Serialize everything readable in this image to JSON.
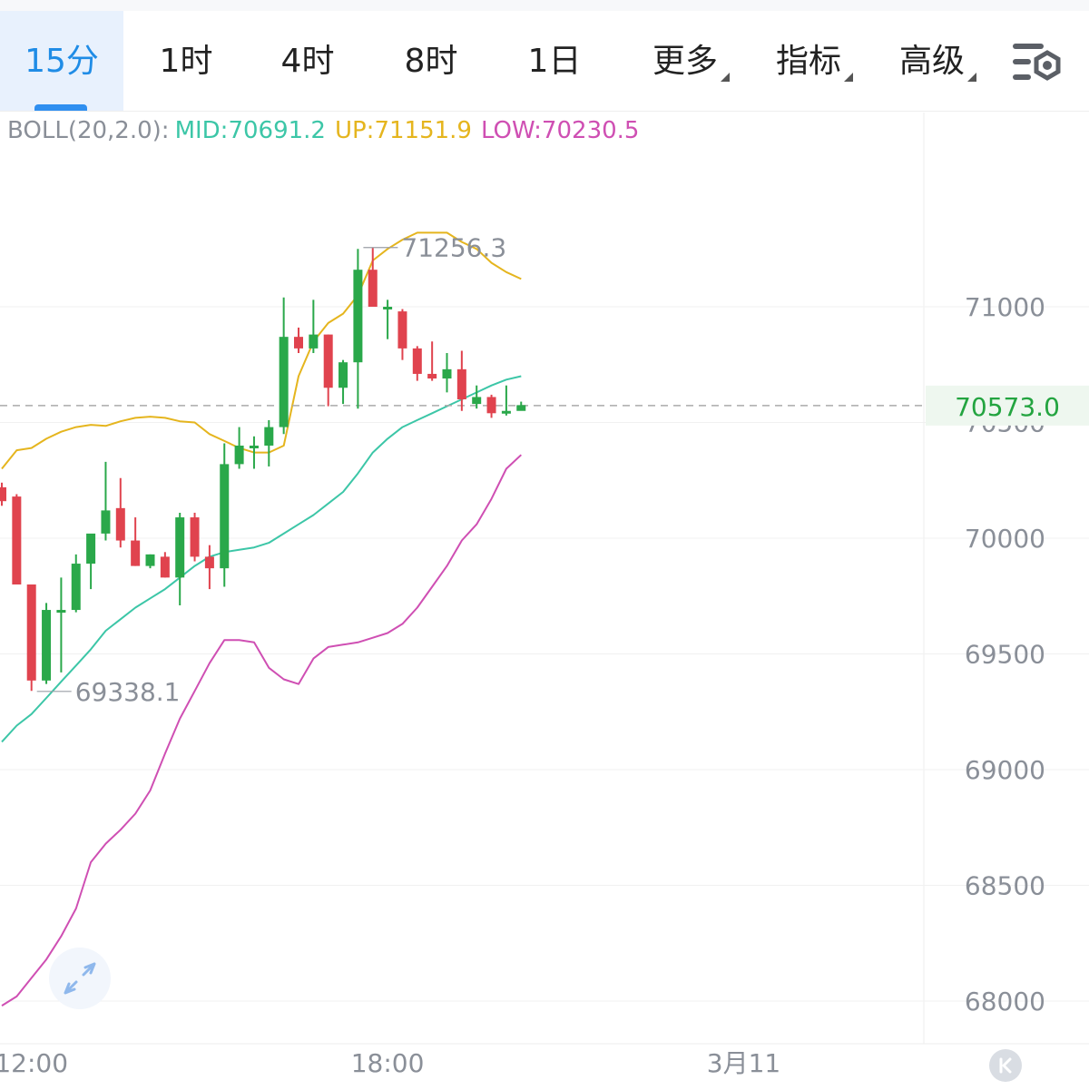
{
  "toolbar": {
    "tabs": [
      {
        "label": "15分",
        "active": true
      },
      {
        "label": "1时"
      },
      {
        "label": "4时"
      },
      {
        "label": "8时"
      },
      {
        "label": "1日"
      },
      {
        "label": "更多",
        "dropdown": true
      },
      {
        "label": "指标",
        "dropdown": true
      },
      {
        "label": "高级",
        "dropdown": true
      }
    ],
    "settings_icon": "chart-settings-icon"
  },
  "indicator": {
    "name": "BOLL(20,2.0):",
    "mid": "MID:70691.2",
    "up": "UP:71151.9",
    "low": "LOW:70230.5"
  },
  "colors": {
    "up_candle": "#2aa84a",
    "down_candle": "#e0434e",
    "boll_mid": "#3cc6a7",
    "boll_up": "#e5b51e",
    "boll_low": "#cf4fb3",
    "price_label": "#23a440",
    "accent": "#1f8ce6"
  },
  "chart_data": {
    "type": "candlestick",
    "interval": "15分",
    "y_axis": {
      "ticks": [
        71000,
        70500,
        70000,
        69500,
        69000,
        68500,
        68000
      ],
      "range": [
        67980,
        71820
      ]
    },
    "x_axis": {
      "labels": [
        {
          "text": "12:00",
          "index": 2
        },
        {
          "text": "18:00",
          "index": 26
        },
        {
          "text": "3月11",
          "index": 50
        }
      ]
    },
    "current_price": "70573.0",
    "high_annotation": {
      "text": "71256.3",
      "index": 24
    },
    "low_annotation": {
      "text": "69338.1",
      "index": 2
    },
    "candles": [
      {
        "o": 70220,
        "h": 70240,
        "l": 70140,
        "c": 70160
      },
      {
        "o": 70180,
        "h": 70190,
        "l": 69800,
        "c": 69800
      },
      {
        "o": 69800,
        "h": 69800,
        "l": 69340,
        "c": 69385
      },
      {
        "o": 69385,
        "h": 69720,
        "l": 69370,
        "c": 69690
      },
      {
        "o": 69680,
        "h": 69830,
        "l": 69420,
        "c": 69690
      },
      {
        "o": 69690,
        "h": 69930,
        "l": 69680,
        "c": 69890
      },
      {
        "o": 69890,
        "h": 70010,
        "l": 69780,
        "c": 70020
      },
      {
        "o": 70020,
        "h": 70330,
        "l": 69990,
        "c": 70120
      },
      {
        "o": 70130,
        "h": 70260,
        "l": 69960,
        "c": 69990
      },
      {
        "o": 69990,
        "h": 70090,
        "l": 69880,
        "c": 69880
      },
      {
        "o": 69880,
        "h": 69930,
        "l": 69870,
        "c": 69930
      },
      {
        "o": 69920,
        "h": 69940,
        "l": 69830,
        "c": 69830
      },
      {
        "o": 69830,
        "h": 70110,
        "l": 69710,
        "c": 70090
      },
      {
        "o": 70090,
        "h": 70110,
        "l": 69900,
        "c": 69920
      },
      {
        "o": 69920,
        "h": 69970,
        "l": 69780,
        "c": 69870
      },
      {
        "o": 69870,
        "h": 70410,
        "l": 69790,
        "c": 70320
      },
      {
        "o": 70320,
        "h": 70480,
        "l": 70300,
        "c": 70400
      },
      {
        "o": 70400,
        "h": 70440,
        "l": 70300,
        "c": 70400
      },
      {
        "o": 70400,
        "h": 70510,
        "l": 70310,
        "c": 70480
      },
      {
        "o": 70480,
        "h": 71040,
        "l": 70450,
        "c": 70870
      },
      {
        "o": 70870,
        "h": 70910,
        "l": 70800,
        "c": 70820
      },
      {
        "o": 70820,
        "h": 71030,
        "l": 70800,
        "c": 70880
      },
      {
        "o": 70880,
        "h": 70880,
        "l": 70570,
        "c": 70650
      },
      {
        "o": 70650,
        "h": 70770,
        "l": 70580,
        "c": 70760
      },
      {
        "o": 70760,
        "h": 71250,
        "l": 70560,
        "c": 71160
      },
      {
        "o": 71160,
        "h": 71256,
        "l": 71000,
        "c": 71000
      },
      {
        "o": 71000,
        "h": 71030,
        "l": 70860,
        "c": 71000
      },
      {
        "o": 70980,
        "h": 70990,
        "l": 70770,
        "c": 70820
      },
      {
        "o": 70820,
        "h": 70830,
        "l": 70680,
        "c": 70710
      },
      {
        "o": 70710,
        "h": 70850,
        "l": 70680,
        "c": 70690
      },
      {
        "o": 70690,
        "h": 70800,
        "l": 70630,
        "c": 70730
      },
      {
        "o": 70730,
        "h": 70810,
        "l": 70550,
        "c": 70600
      },
      {
        "o": 70580,
        "h": 70660,
        "l": 70560,
        "c": 70610
      },
      {
        "o": 70610,
        "h": 70620,
        "l": 70520,
        "c": 70540
      },
      {
        "o": 70550,
        "h": 70660,
        "l": 70530,
        "c": 70550
      },
      {
        "o": 70550,
        "h": 70590,
        "l": 70560,
        "c": 70575
      }
    ],
    "boll_up": [
      70300,
      70380,
      70390,
      70430,
      70460,
      70480,
      70490,
      70485,
      70505,
      70520,
      70525,
      70520,
      70505,
      70500,
      70450,
      70420,
      70390,
      70370,
      70370,
      70400,
      70700,
      70850,
      70930,
      70970,
      71050,
      71200,
      71250,
      71290,
      71320,
      71320,
      71320,
      71280,
      71250,
      71190,
      71150,
      71120
    ],
    "boll_mid": [
      69120,
      69190,
      69240,
      69310,
      69380,
      69450,
      69520,
      69600,
      69650,
      69700,
      69740,
      69780,
      69830,
      69880,
      69920,
      69940,
      69950,
      69960,
      69980,
      70020,
      70060,
      70100,
      70150,
      70200,
      70280,
      70370,
      70430,
      70480,
      70510,
      70540,
      70570,
      70600,
      70630,
      70660,
      70685,
      70700
    ],
    "boll_low": [
      67980,
      68020,
      68100,
      68180,
      68280,
      68400,
      68600,
      68680,
      68740,
      68810,
      68910,
      69070,
      69220,
      69340,
      69460,
      69560,
      69560,
      69550,
      69440,
      69390,
      69370,
      69480,
      69530,
      69540,
      69550,
      69570,
      69590,
      69630,
      69700,
      69790,
      69880,
      69990,
      70060,
      70170,
      70300,
      70360
    ]
  }
}
